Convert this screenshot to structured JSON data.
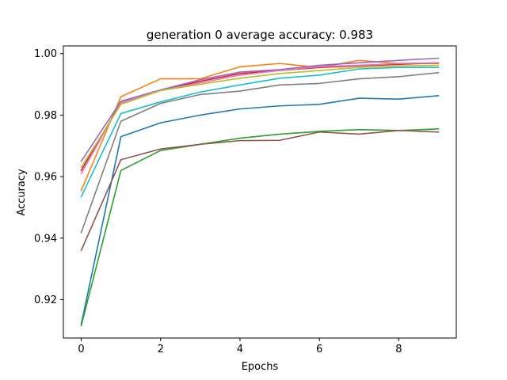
{
  "chart_data": {
    "type": "line",
    "title": "generation 0 average accuracy: 0.983",
    "xlabel": "Epochs",
    "ylabel": "Accuracy",
    "xlim": [
      -0.45,
      9.45
    ],
    "ylim": [
      0.9075,
      1.0025
    ],
    "xticks": [
      0,
      2,
      4,
      6,
      8
    ],
    "xtick_labels": [
      "0",
      "2",
      "4",
      "6",
      "8"
    ],
    "yticks": [
      0.92,
      0.94,
      0.96,
      0.98,
      1.0
    ],
    "ytick_labels": [
      "0.92",
      "0.94",
      "0.96",
      "0.98",
      "1.00"
    ],
    "grid": false,
    "legend": "none",
    "x": [
      0,
      1,
      2,
      3,
      4,
      5,
      6,
      7,
      8,
      9
    ],
    "series": [
      {
        "color": "#1f77b4",
        "values": [
          0.912,
          0.973,
          0.9775,
          0.98,
          0.982,
          0.983,
          0.9835,
          0.9855,
          0.9852,
          0.9863
        ]
      },
      {
        "color": "#ff7f0e",
        "values": [
          0.9555,
          0.986,
          0.9918,
          0.9918,
          0.9957,
          0.9968,
          0.9955,
          0.9978,
          0.9968,
          0.9968
        ]
      },
      {
        "color": "#2ca02c",
        "values": [
          0.9115,
          0.962,
          0.9685,
          0.9705,
          0.9725,
          0.9738,
          0.9747,
          0.9753,
          0.975,
          0.9755
        ]
      },
      {
        "color": "#d62728",
        "values": [
          0.962,
          0.984,
          0.988,
          0.991,
          0.9935,
          0.9945,
          0.9955,
          0.996,
          0.9965,
          0.997
        ]
      },
      {
        "color": "#9467bd",
        "values": [
          0.965,
          0.9845,
          0.9882,
          0.9915,
          0.994,
          0.9948,
          0.9962,
          0.997,
          0.9978,
          0.9985
        ]
      },
      {
        "color": "#8c564b",
        "values": [
          0.936,
          0.9655,
          0.969,
          0.9705,
          0.9717,
          0.9718,
          0.9745,
          0.9738,
          0.975,
          0.9745
        ]
      },
      {
        "color": "#e377c2",
        "values": [
          0.961,
          0.984,
          0.988,
          0.9905,
          0.993,
          0.9945,
          0.9958,
          0.9962,
          0.9968,
          0.997
        ]
      },
      {
        "color": "#7f7f7f",
        "values": [
          0.9418,
          0.978,
          0.9838,
          0.9867,
          0.9878,
          0.9898,
          0.9903,
          0.9918,
          0.9925,
          0.9938
        ]
      },
      {
        "color": "#bcbd22",
        "values": [
          0.963,
          0.9835,
          0.988,
          0.99,
          0.992,
          0.9935,
          0.9945,
          0.9955,
          0.996,
          0.9962
        ]
      },
      {
        "color": "#17becf",
        "values": [
          0.9535,
          0.9805,
          0.9843,
          0.9875,
          0.9898,
          0.992,
          0.993,
          0.995,
          0.9955,
          0.9955
        ]
      }
    ]
  }
}
